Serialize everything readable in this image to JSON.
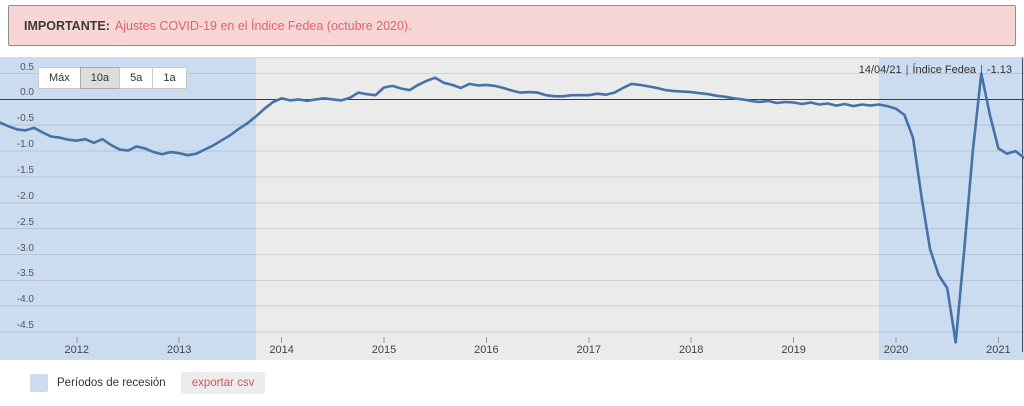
{
  "banner": {
    "prefix": "IMPORTANTE:",
    "link_text": "Ajustes COVID-19 en el Índice Fedea (octubre 2020)."
  },
  "toolbar": {
    "range_buttons": [
      {
        "label": "Máx",
        "selected": false
      },
      {
        "label": "10a",
        "selected": true
      },
      {
        "label": "5a",
        "selected": false
      },
      {
        "label": "1a",
        "selected": false
      }
    ]
  },
  "tooltip": {
    "date": "14/04/21",
    "series_name": "Índice Fedea",
    "value": "-1.13",
    "separator": "|",
    "full_text": "14/04/21 | Índice Fedea | -1.13"
  },
  "legend": {
    "recession_label": "Períodos de recesión",
    "export_label": "exportar csv"
  },
  "colors": {
    "line": "#4572a7",
    "recession_band": "#cbdcf0",
    "plot_background": "#ebebeb",
    "banner_background": "#f8d6d6",
    "banner_link": "#e0636e",
    "export_text": "#cd5a5e"
  },
  "chart_data": {
    "type": "line",
    "title": "",
    "xlabel": "",
    "ylabel": "",
    "frequency": "monthly",
    "x_start": "2011-04",
    "x_end": "2021-04",
    "x_ticks": [
      "2012",
      "2013",
      "2014",
      "2015",
      "2016",
      "2017",
      "2018",
      "2019",
      "2020",
      "2021"
    ],
    "ylim": [
      -5.04,
      0.8
    ],
    "y_gridlines": [
      0.5,
      0.0,
      -0.5,
      -1.0,
      -1.5,
      -2.0,
      -2.5,
      -3.0,
      -3.5,
      -4.0,
      -4.5
    ],
    "zero_line": 0,
    "legend_position": "bottom-left",
    "series": [
      {
        "name": "Índice Fedea",
        "color": "#4572a7",
        "last_point": {
          "date": "14/04/21",
          "value": -1.13
        },
        "values": [
          -0.45,
          -0.52,
          -0.58,
          -0.6,
          -0.55,
          -0.64,
          -0.72,
          -0.74,
          -0.78,
          -0.8,
          -0.77,
          -0.84,
          -0.77,
          -0.88,
          -0.97,
          -0.99,
          -0.91,
          -0.95,
          -1.02,
          -1.06,
          -1.02,
          -1.04,
          -1.08,
          -1.05,
          -0.97,
          -0.89,
          -0.79,
          -0.69,
          -0.57,
          -0.46,
          -0.33,
          -0.18,
          -0.05,
          0.02,
          -0.02,
          0.0,
          -0.03,
          0.0,
          0.02,
          0.0,
          -0.02,
          0.03,
          0.13,
          0.1,
          0.08,
          0.23,
          0.26,
          0.21,
          0.18,
          0.28,
          0.36,
          0.42,
          0.32,
          0.28,
          0.22,
          0.3,
          0.27,
          0.28,
          0.26,
          0.22,
          0.17,
          0.13,
          0.14,
          0.13,
          0.08,
          0.06,
          0.06,
          0.08,
          0.08,
          0.08,
          0.11,
          0.09,
          0.13,
          0.22,
          0.3,
          0.28,
          0.25,
          0.22,
          0.18,
          0.16,
          0.15,
          0.14,
          0.12,
          0.1,
          0.07,
          0.05,
          0.02,
          0.0,
          -0.03,
          -0.05,
          -0.03,
          -0.07,
          -0.05,
          -0.06,
          -0.09,
          -0.06,
          -0.1,
          -0.08,
          -0.12,
          -0.09,
          -0.13,
          -0.1,
          -0.12,
          -0.1,
          -0.13,
          -0.18,
          -0.3,
          -0.75,
          -1.9,
          -2.9,
          -3.4,
          -3.65,
          -4.7,
          -2.9,
          -1.0,
          0.5,
          -0.3,
          -0.95,
          -1.05,
          -1.0,
          -1.13
        ]
      }
    ],
    "recession_bands": [
      {
        "from_index": 0,
        "to_index": 30
      },
      {
        "from_index": 103,
        "to_index": 120
      }
    ],
    "crosshair_index": 120
  }
}
